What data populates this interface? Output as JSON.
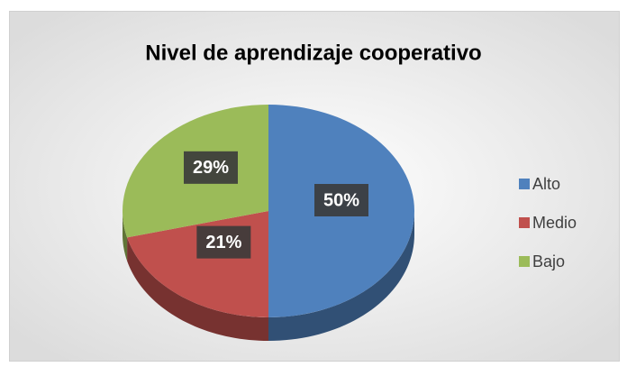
{
  "chart_data": {
    "type": "pie",
    "title": "Nivel de aprendizaje cooperativo",
    "categories": [
      "Alto",
      "Medio",
      "Bajo"
    ],
    "values": [
      50,
      21,
      29
    ],
    "value_labels": [
      "50%",
      "21%",
      "29%"
    ],
    "colors": [
      "#4f81bd",
      "#c0504d",
      "#9bbb59"
    ],
    "legend": "right"
  }
}
